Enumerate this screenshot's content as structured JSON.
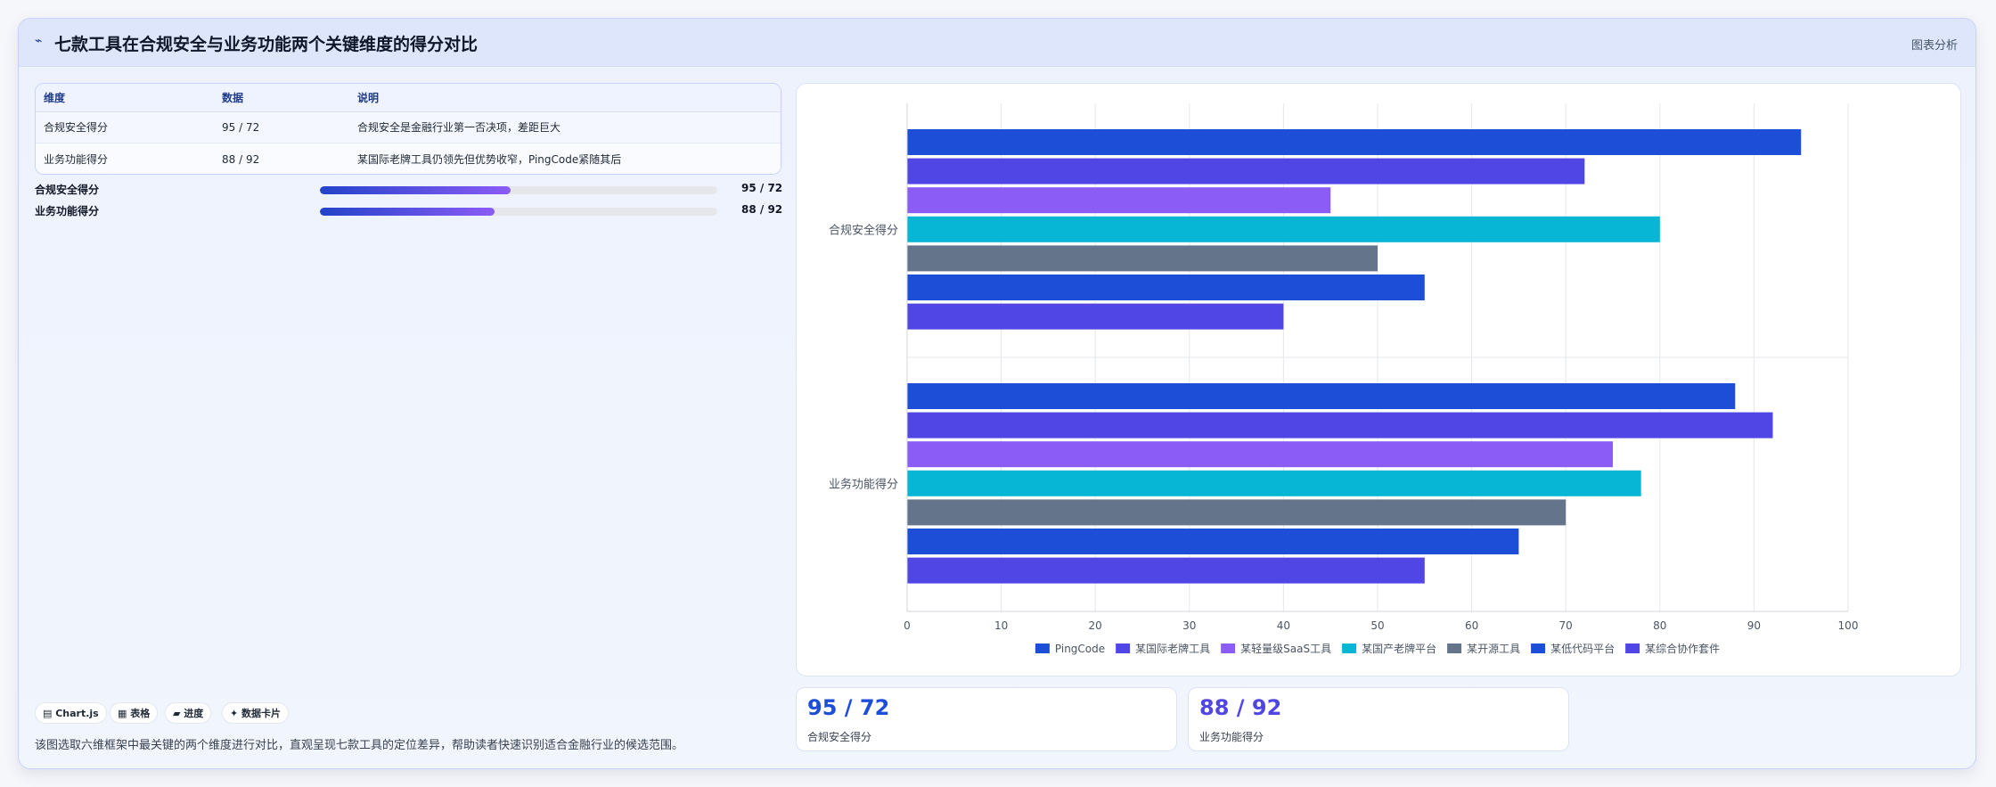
{
  "header": {
    "icon": "chart-line-icon",
    "title": "七款工具在合规安全与业务功能两个关键维度的得分对比",
    "link": "图表分析"
  },
  "table": {
    "headers": [
      "维度",
      "数据",
      "说明"
    ],
    "rows": [
      [
        "合规安全得分",
        "95 / 72",
        "合规安全是金融行业第一否决项，差距巨大"
      ],
      [
        "业务功能得分",
        "88 / 92",
        "某国际老牌工具仍领先但优势收窄，PingCode紧随其后"
      ]
    ]
  },
  "progress": [
    {
      "label": "合规安全得分",
      "value_text": "95 / 72",
      "fraction": 0.48
    },
    {
      "label": "业务功能得分",
      "value_text": "88 / 92",
      "fraction": 0.44
    }
  ],
  "chips": [
    "▤ Chart.js",
    "▦ 表格",
    "▰ 进度",
    "✦ 数据卡片"
  ],
  "note": "该图选取六维框架中最关键的两个维度进行对比，直观呈现七款工具的定位差异，帮助读者快速识别适合金融行业的候选范围。",
  "stats": [
    {
      "value": "95 / 72",
      "caption": "合规安全得分",
      "color": "#1d4ed8"
    },
    {
      "value": "88 / 92",
      "caption": "业务功能得分",
      "color": "#4f46e5"
    }
  ],
  "chart_data": {
    "type": "bar",
    "orientation": "horizontal",
    "categories": [
      "合规安全得分",
      "业务功能得分"
    ],
    "series": [
      {
        "name": "PingCode",
        "values": [
          95,
          88
        ],
        "color": "#1d4ed8"
      },
      {
        "name": "某国际老牌工具",
        "values": [
          72,
          92
        ],
        "color": "#4f46e5"
      },
      {
        "name": "某轻量级SaaS工具",
        "values": [
          45,
          75
        ],
        "color": "#8b5cf6"
      },
      {
        "name": "某国产老牌平台",
        "values": [
          80,
          78
        ],
        "color": "#06b6d4"
      },
      {
        "name": "某开源工具",
        "values": [
          50,
          70
        ],
        "color": "#64748b"
      },
      {
        "name": "某低代码平台",
        "values": [
          55,
          65
        ],
        "color": "#1d4ed8"
      },
      {
        "name": "某综合协作套件",
        "values": [
          40,
          55
        ],
        "color": "#4f46e5"
      }
    ],
    "xlim": [
      0,
      100
    ],
    "xticks": [
      0,
      10,
      20,
      30,
      40,
      50,
      60,
      70,
      80,
      90,
      100
    ],
    "grid": true,
    "legend": "bottom"
  }
}
